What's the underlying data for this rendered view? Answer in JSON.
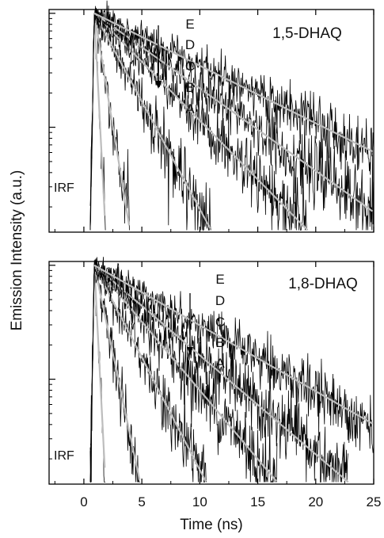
{
  "chart_data": {
    "type": "line",
    "xlabel": "Time (ns)",
    "ylabel": "Emission Intensity (a.u.)",
    "xlim": [
      -3,
      25
    ],
    "xticks": [
      0,
      5,
      10,
      15,
      20,
      25
    ],
    "yscale": "log",
    "panels": [
      {
        "title": "1,5-DHAQ",
        "letters": [
          "E",
          "D",
          "C",
          "B",
          "A"
        ],
        "irf_label": "IRF",
        "arrow": "down",
        "series": [
          {
            "name": "IRF",
            "tau": 0.22,
            "floor": 0.02
          },
          {
            "name": "A",
            "tau": 0.7,
            "floor": 0.02
          },
          {
            "name": "B",
            "tau": 2.3,
            "floor": 0.02
          },
          {
            "name": "C",
            "tau": 4.2,
            "floor": 0.02
          },
          {
            "name": "D",
            "tau": 6.0,
            "floor": 0.02
          },
          {
            "name": "E",
            "tau": 8.6,
            "floor": 0.02
          }
        ]
      },
      {
        "title": "1,8-DHAQ",
        "letters": [
          "E",
          "D",
          "C",
          "B",
          "A"
        ],
        "irf_label": "IRF",
        "arrow": "down",
        "series": [
          {
            "name": "IRF",
            "tau": 0.22,
            "floor": 0.02
          },
          {
            "name": "A",
            "tau": 0.9,
            "floor": 0.02
          },
          {
            "name": "B",
            "tau": 2.2,
            "floor": 0.02
          },
          {
            "name": "C",
            "tau": 3.6,
            "floor": 0.02
          },
          {
            "name": "D",
            "tau": 5.0,
            "floor": 0.02
          },
          {
            "name": "E",
            "tau": 7.5,
            "floor": 0.02
          }
        ]
      }
    ],
    "grid": false
  }
}
